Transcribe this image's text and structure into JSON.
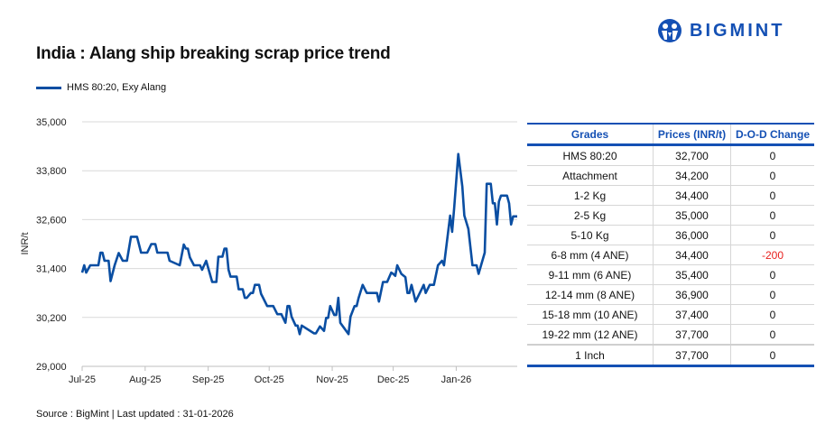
{
  "title": "India : Alang ship breaking scrap price trend",
  "source": "Source : BigMint | Last updated : 31-01-2026",
  "logo_text": "BIGMINT",
  "colors": {
    "series": "#0a4ea2",
    "brand": "#1450b4",
    "negative": "#e8201e",
    "grid": "#d9d9d9"
  },
  "chart_data": {
    "type": "line",
    "title": "",
    "xlabel": "",
    "ylabel": "INR/t",
    "ylim": [
      29000,
      35000
    ],
    "yticks": [
      29000,
      30200,
      31400,
      32600,
      33800,
      35000
    ],
    "ytick_labels": [
      "29,000",
      "30,200",
      "31,400",
      "32,600",
      "33,800",
      "35,000"
    ],
    "xtick_dates": [
      "2025-07-01",
      "2025-08-01",
      "2025-09-01",
      "2025-10-01",
      "2025-11-01",
      "2025-12-01",
      "2026-01-01"
    ],
    "xtick_labels": [
      "Jul-25",
      "Aug-25",
      "Sep-25",
      "Oct-25",
      "Nov-25",
      "Dec-25",
      "Jan-26"
    ],
    "xlim": [
      "2025-07-01",
      "2026-01-31"
    ],
    "grid": "horizontal",
    "legend": "top-left",
    "series": [
      {
        "name": "HMS 80:20, Exy Alang",
        "points": [
          [
            "2025-07-01",
            31300
          ],
          [
            "2025-07-02",
            31480
          ],
          [
            "2025-07-03",
            31300
          ],
          [
            "2025-07-05",
            31480
          ],
          [
            "2025-07-09",
            31480
          ],
          [
            "2025-07-10",
            31790
          ],
          [
            "2025-07-11",
            31790
          ],
          [
            "2025-07-12",
            31590
          ],
          [
            "2025-07-14",
            31590
          ],
          [
            "2025-07-15",
            31090
          ],
          [
            "2025-07-17",
            31480
          ],
          [
            "2025-07-19",
            31780
          ],
          [
            "2025-07-21",
            31590
          ],
          [
            "2025-07-23",
            31590
          ],
          [
            "2025-07-25",
            32180
          ],
          [
            "2025-07-28",
            32180
          ],
          [
            "2025-07-30",
            31790
          ],
          [
            "2025-08-02",
            31790
          ],
          [
            "2025-08-04",
            32000
          ],
          [
            "2025-08-06",
            32000
          ],
          [
            "2025-08-07",
            31790
          ],
          [
            "2025-08-12",
            31790
          ],
          [
            "2025-08-13",
            31590
          ],
          [
            "2025-08-18",
            31480
          ],
          [
            "2025-08-20",
            31990
          ],
          [
            "2025-08-21",
            31890
          ],
          [
            "2025-08-22",
            31890
          ],
          [
            "2025-08-23",
            31670
          ],
          [
            "2025-08-25",
            31480
          ],
          [
            "2025-08-28",
            31480
          ],
          [
            "2025-08-29",
            31370
          ],
          [
            "2025-08-31",
            31590
          ],
          [
            "2025-09-03",
            31070
          ],
          [
            "2025-09-05",
            31070
          ],
          [
            "2025-09-06",
            31690
          ],
          [
            "2025-09-08",
            31690
          ],
          [
            "2025-09-09",
            31890
          ],
          [
            "2025-09-10",
            31890
          ],
          [
            "2025-09-11",
            31370
          ],
          [
            "2025-09-12",
            31200
          ],
          [
            "2025-09-15",
            31200
          ],
          [
            "2025-09-16",
            30890
          ],
          [
            "2025-09-18",
            30890
          ],
          [
            "2025-09-19",
            30680
          ],
          [
            "2025-09-20",
            30680
          ],
          [
            "2025-09-22",
            30800
          ],
          [
            "2025-09-23",
            30800
          ],
          [
            "2025-09-24",
            31000
          ],
          [
            "2025-09-26",
            31000
          ],
          [
            "2025-09-27",
            30780
          ],
          [
            "2025-09-28",
            30680
          ],
          [
            "2025-09-30",
            30480
          ],
          [
            "2025-10-03",
            30480
          ],
          [
            "2025-10-05",
            30280
          ],
          [
            "2025-10-07",
            30280
          ],
          [
            "2025-10-09",
            30070
          ],
          [
            "2025-10-10",
            30480
          ],
          [
            "2025-10-11",
            30480
          ],
          [
            "2025-10-12",
            30220
          ],
          [
            "2025-10-14",
            30000
          ],
          [
            "2025-10-15",
            30000
          ],
          [
            "2025-10-16",
            29790
          ],
          [
            "2025-10-17",
            30000
          ],
          [
            "2025-10-23",
            29810
          ],
          [
            "2025-10-24",
            29810
          ],
          [
            "2025-10-26",
            29980
          ],
          [
            "2025-10-28",
            29870
          ],
          [
            "2025-10-29",
            30190
          ],
          [
            "2025-10-30",
            30190
          ],
          [
            "2025-10-31",
            30480
          ],
          [
            "2025-11-02",
            30260
          ],
          [
            "2025-11-03",
            30260
          ],
          [
            "2025-11-04",
            30680
          ],
          [
            "2025-11-05",
            30070
          ],
          [
            "2025-11-09",
            29790
          ],
          [
            "2025-11-10",
            30220
          ],
          [
            "2025-11-12",
            30480
          ],
          [
            "2025-11-13",
            30480
          ],
          [
            "2025-11-14",
            30680
          ],
          [
            "2025-11-16",
            31000
          ],
          [
            "2025-11-18",
            30800
          ],
          [
            "2025-11-23",
            30800
          ],
          [
            "2025-11-24",
            30590
          ],
          [
            "2025-11-26",
            31070
          ],
          [
            "2025-11-28",
            31070
          ],
          [
            "2025-11-30",
            31300
          ],
          [
            "2025-12-01",
            31270
          ],
          [
            "2025-12-02",
            31220
          ],
          [
            "2025-12-03",
            31480
          ],
          [
            "2025-12-05",
            31270
          ],
          [
            "2025-12-07",
            31190
          ],
          [
            "2025-12-08",
            30800
          ],
          [
            "2025-12-09",
            30800
          ],
          [
            "2025-12-10",
            31000
          ],
          [
            "2025-12-12",
            30590
          ],
          [
            "2025-12-15",
            30890
          ],
          [
            "2025-12-16",
            31000
          ],
          [
            "2025-12-17",
            30800
          ],
          [
            "2025-12-19",
            31000
          ],
          [
            "2025-12-21",
            31000
          ],
          [
            "2025-12-23",
            31480
          ],
          [
            "2025-12-25",
            31590
          ],
          [
            "2025-12-26",
            31480
          ],
          [
            "2025-12-29",
            32700
          ],
          [
            "2025-12-30",
            32300
          ],
          [
            "2025-12-31",
            32900
          ],
          [
            "2026-01-02",
            34210
          ],
          [
            "2026-01-04",
            33410
          ],
          [
            "2026-01-05",
            32700
          ],
          [
            "2026-01-07",
            32370
          ],
          [
            "2026-01-09",
            31480
          ],
          [
            "2026-01-11",
            31480
          ],
          [
            "2026-01-12",
            31270
          ],
          [
            "2026-01-15",
            31790
          ],
          [
            "2026-01-16",
            33480
          ],
          [
            "2026-01-18",
            33480
          ],
          [
            "2026-01-19",
            33000
          ],
          [
            "2026-01-20",
            33000
          ],
          [
            "2026-01-21",
            32480
          ],
          [
            "2026-01-22",
            33040
          ],
          [
            "2026-01-23",
            33190
          ],
          [
            "2026-01-26",
            33190
          ],
          [
            "2026-01-27",
            33000
          ],
          [
            "2026-01-28",
            32480
          ],
          [
            "2026-01-29",
            32680
          ],
          [
            "2026-01-31",
            32680
          ]
        ]
      }
    ]
  },
  "table": {
    "headers": [
      "Grades",
      "Prices (INR/t)",
      "D-O-D Change"
    ],
    "rows": [
      [
        "HMS 80:20",
        "32,700",
        "0"
      ],
      [
        "Attachment",
        "34,200",
        "0"
      ],
      [
        "1-2 Kg",
        "34,400",
        "0"
      ],
      [
        "2-5 Kg",
        "35,000",
        "0"
      ],
      [
        "5-10 Kg",
        "36,000",
        "0"
      ],
      [
        "6-8 mm (4 ANE)",
        "34,400",
        "-200"
      ],
      [
        "9-11 mm (6 ANE)",
        "35,400",
        "0"
      ],
      [
        "12-14 mm (8 ANE)",
        "36,900",
        "0"
      ],
      [
        "15-18 mm (10 ANE)",
        "37,400",
        "0"
      ],
      [
        "19-22 mm (12 ANE)",
        "37,700",
        "0"
      ],
      [
        "1 Inch",
        "37,700",
        "0"
      ]
    ]
  }
}
